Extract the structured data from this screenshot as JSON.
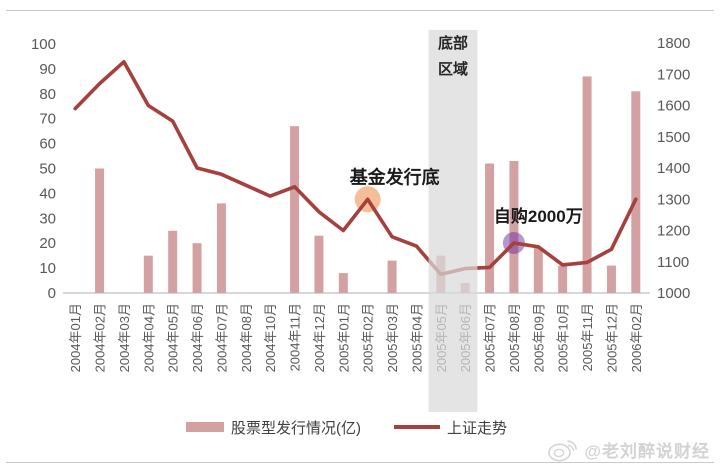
{
  "watermark": {
    "handle": "@老刘醉说财经",
    "icon": "weibo-icon"
  },
  "chart_data": {
    "type": "bar+line",
    "title": "",
    "categories": [
      "2004年01月",
      "2004年02月",
      "2004年03月",
      "2004年04月",
      "2004年05月",
      "2004年06月",
      "2004年07月",
      "2004年08月",
      "2004年10月",
      "2004年11月",
      "2004年12月",
      "2005年01月",
      "2005年02月",
      "2005年03月",
      "2005年04月",
      "2005年05月",
      "2005年06月",
      "2005年07月",
      "2005年08月",
      "2005年09月",
      "2005年10月",
      "2005年11月",
      "2005年12月",
      "2006年02月"
    ],
    "series": [
      {
        "name": "股票型发行情况(亿)",
        "type": "bar",
        "axis": "left",
        "color": "#d4a1a3",
        "values": [
          null,
          50,
          null,
          15,
          25,
          20,
          36,
          null,
          null,
          67,
          23,
          8,
          null,
          13,
          null,
          15,
          4,
          52,
          53,
          18,
          11,
          87,
          11,
          81
        ]
      },
      {
        "name": "上证走势",
        "type": "line",
        "axis": "right",
        "color": "#a6403c",
        "values": [
          1590,
          1670,
          1740,
          1600,
          1550,
          1400,
          1380,
          1345,
          1310,
          1340,
          1260,
          1200,
          1300,
          1180,
          1150,
          1060,
          1078,
          1082,
          1160,
          1148,
          1090,
          1098,
          1140,
          1300
        ]
      }
    ],
    "left_axis": {
      "min": 0,
      "max": 100,
      "step": 10,
      "text_color": "#595959"
    },
    "right_axis": {
      "min": 1000,
      "max": 1800,
      "step": 100,
      "text_color": "#595959"
    },
    "grid": false,
    "legend_position": "bottom",
    "annotations": [
      {
        "kind": "band",
        "label_lines": [
          "底部",
          "区域"
        ],
        "from_category": "2005年05月",
        "to_category": "2005年06月",
        "color": "#d9d9d9"
      },
      {
        "kind": "marker",
        "label": "基金发行底",
        "category": "2005年02月",
        "value": 1300,
        "color": "#ed7d31"
      },
      {
        "kind": "marker",
        "label": "自购2000万",
        "category": "2005年08月",
        "value": 1160,
        "color": "#7030a0"
      }
    ]
  }
}
